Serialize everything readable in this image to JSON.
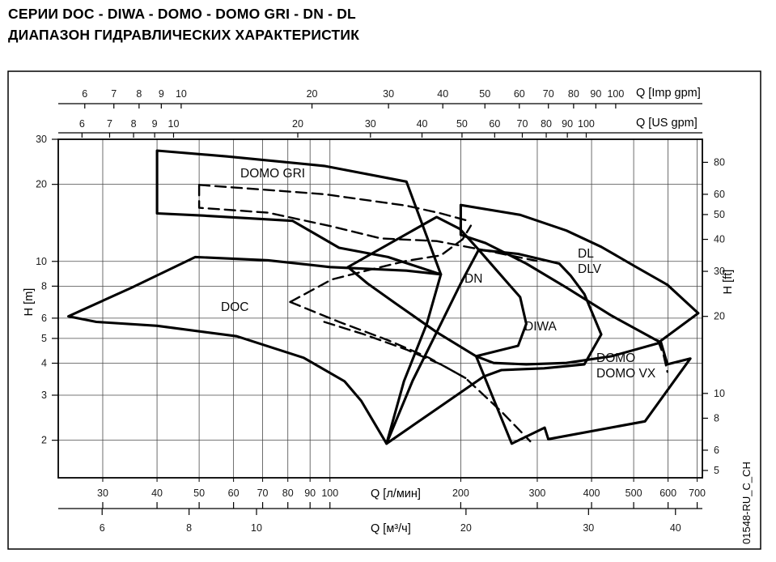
{
  "title": {
    "line1": "СЕРИИ DOC - DIWA - DOMO - DOMO GRI - DN - DL",
    "line2": "ДИАПАЗОН ГИДРАВЛИЧЕСКИХ ХАРАКТЕРИСТИК"
  },
  "doc_ref": "01548-RU_C_CH",
  "chart_data": {
    "type": "area",
    "title": "Диапазон гидравлических характеристик насосов",
    "grid": true,
    "scale": "log-log",
    "axes": {
      "x_lmin": {
        "label": "Q [л/мин]",
        "ticks": [
          30,
          40,
          50,
          60,
          70,
          80,
          90,
          100,
          200,
          300,
          400,
          500,
          600,
          700
        ],
        "range": [
          23.7,
          720
        ]
      },
      "x_m3h": {
        "label": "Q [м³/ч]",
        "ticks": [
          6,
          8,
          10,
          20,
          30,
          40
        ]
      },
      "x_imp": {
        "label": "Q [Imp gpm]",
        "ticks": [
          6,
          7,
          8,
          9,
          10,
          20,
          30,
          40,
          50,
          60,
          70,
          80,
          90,
          100
        ]
      },
      "x_us": {
        "label": "Q [US gpm]",
        "ticks": [
          6,
          7,
          8,
          9,
          10,
          20,
          30,
          40,
          50,
          60,
          70,
          80,
          90,
          100
        ]
      },
      "y_m": {
        "label": "H [m]",
        "ticks": [
          30,
          20,
          10,
          8,
          6,
          5,
          4,
          3,
          2
        ],
        "range": [
          1.43,
          30
        ]
      },
      "y_ft": {
        "label": "H [ft]",
        "ticks": [
          80,
          60,
          50,
          40,
          30,
          20,
          10,
          8,
          6,
          5
        ]
      }
    },
    "series": [
      {
        "name": "DOMO GRI",
        "style": "solid",
        "closed": true,
        "points": [
          [
            40,
            27.1
          ],
          [
            58,
            25.7
          ],
          [
            97,
            23.6
          ],
          [
            150,
            20.5
          ],
          [
            180,
            8.9
          ],
          [
            136,
            10.4
          ],
          [
            105,
            11.3
          ],
          [
            82,
            14.4
          ],
          [
            51,
            15.1
          ],
          [
            40,
            15.4
          ]
        ]
      },
      {
        "name": "DOC",
        "style": "solid",
        "closed": true,
        "points": [
          [
            25,
            6.1
          ],
          [
            35,
            7.9
          ],
          [
            49,
            10.4
          ],
          [
            72,
            10.1
          ],
          [
            100,
            9.5
          ],
          [
            150,
            9.2
          ],
          [
            180,
            8.9
          ],
          [
            167,
            5.7
          ],
          [
            148,
            3.4
          ],
          [
            135,
            1.94
          ],
          [
            118,
            2.85
          ],
          [
            108,
            3.4
          ],
          [
            87,
            4.2
          ],
          [
            61,
            5.1
          ],
          [
            40,
            5.6
          ],
          [
            29,
            5.8
          ]
        ]
      },
      {
        "name": "DN",
        "style": "solid",
        "closed": true,
        "points": [
          [
            110,
            9.5
          ],
          [
            176,
            14.9
          ],
          [
            199,
            13.4
          ],
          [
            220,
            11.1
          ],
          [
            245,
            9.0
          ],
          [
            274,
            7.25
          ],
          [
            283,
            5.7
          ],
          [
            271,
            4.68
          ],
          [
            217,
            4.26
          ],
          [
            176,
            5.29
          ],
          [
            142,
            6.83
          ],
          [
            122,
            8.2
          ]
        ]
      },
      {
        "name": "DIWA",
        "style": "solid",
        "closed": true,
        "points": [
          [
            220,
            11.1
          ],
          [
            271,
            10.7
          ],
          [
            337,
            9.8
          ],
          [
            358,
            8.8
          ],
          [
            385,
            7.45
          ],
          [
            421,
            5.18
          ],
          [
            385,
            3.96
          ],
          [
            311,
            3.82
          ],
          [
            248,
            3.76
          ],
          [
            226,
            3.55
          ],
          [
            135,
            1.94
          ],
          [
            155,
            3.42
          ],
          [
            180,
            5.7
          ],
          [
            200,
            8.2
          ]
        ]
      },
      {
        "name": "DL / DLV",
        "style": "solid",
        "closed": true,
        "points": [
          [
            200,
            16.6
          ],
          [
            274,
            15.2
          ],
          [
            350,
            13.2
          ],
          [
            421,
            11.4
          ],
          [
            507,
            9.5
          ],
          [
            598,
            8.1
          ],
          [
            704,
            6.27
          ],
          [
            573,
            4.85
          ],
          [
            445,
            6.13
          ],
          [
            350,
            7.9
          ],
          [
            283,
            9.8
          ],
          [
            228,
            11.8
          ],
          [
            200,
            12.7
          ]
        ]
      },
      {
        "name": "DOMO / DOMO VX",
        "style": "solid",
        "closed": true,
        "points": [
          [
            217,
            4.26
          ],
          [
            262,
            1.94
          ],
          [
            312,
            2.24
          ],
          [
            318,
            2.02
          ],
          [
            531,
            2.37
          ],
          [
            675,
            4.17
          ],
          [
            598,
            3.96
          ],
          [
            578,
            4.82
          ],
          [
            445,
            4.26
          ],
          [
            350,
            4.01
          ],
          [
            283,
            3.96
          ],
          [
            238,
            4.01
          ]
        ]
      },
      {
        "name": "dashed-range-1",
        "style": "dashed",
        "closed": false,
        "points": [
          [
            50,
            19.9
          ],
          [
            97,
            18.3
          ],
          [
            150,
            16.5
          ],
          [
            180,
            15.4
          ],
          [
            205,
            14.5
          ]
        ]
      },
      {
        "name": "dashed-range-2",
        "style": "dashed",
        "closed": false,
        "points": [
          [
            50,
            19.9
          ],
          [
            50,
            16.2
          ],
          [
            72,
            15.5
          ],
          [
            101,
            13.7
          ],
          [
            131,
            12.3
          ],
          [
            176,
            12.0
          ],
          [
            218,
            11.2
          ],
          [
            299,
            10.05
          ]
        ]
      },
      {
        "name": "dashed-range-3",
        "style": "dashed",
        "closed": false,
        "points": [
          [
            81,
            6.94
          ],
          [
            101,
            8.5
          ],
          [
            126,
            9.35
          ],
          [
            150,
            10.05
          ],
          [
            180,
            10.55
          ],
          [
            202,
            12.2
          ],
          [
            211,
            13.8
          ]
        ]
      },
      {
        "name": "dashed-range-4",
        "style": "dashed",
        "closed": false,
        "points": [
          [
            81,
            6.94
          ],
          [
            105,
            5.8
          ],
          [
            136,
            4.92
          ],
          [
            169,
            4.2
          ],
          [
            205,
            3.5
          ],
          [
            248,
            2.59
          ],
          [
            289,
            1.98
          ]
        ]
      },
      {
        "name": "dashed-range-5",
        "style": "dashed",
        "closed": false,
        "points": [
          [
            97,
            5.8
          ],
          [
            120,
            5.18
          ],
          [
            150,
            4.52
          ],
          [
            180,
            3.96
          ],
          [
            205,
            3.5
          ]
        ]
      },
      {
        "name": "dashed-range-6",
        "style": "dashed",
        "closed": false,
        "points": [
          [
            568,
            4.92
          ],
          [
            586,
            4.3
          ],
          [
            598,
            3.7
          ]
        ]
      }
    ],
    "labels": [
      {
        "text": "DOMO GRI",
        "q": 62,
        "h": 21.3
      },
      {
        "text": "DOC",
        "q": 56,
        "h": 6.4
      },
      {
        "text": "DN",
        "q": 206,
        "h": 8.26
      },
      {
        "text": "DIWA",
        "q": 283,
        "h": 5.35
      },
      {
        "text": "DL",
        "q": 372,
        "h": 10.4
      },
      {
        "text": "DLV",
        "q": 372,
        "h": 9.0
      },
      {
        "text": "DOMO",
        "q": 410,
        "h": 4.05
      },
      {
        "text": "DOMO VX",
        "q": 410,
        "h": 3.53
      }
    ]
  }
}
